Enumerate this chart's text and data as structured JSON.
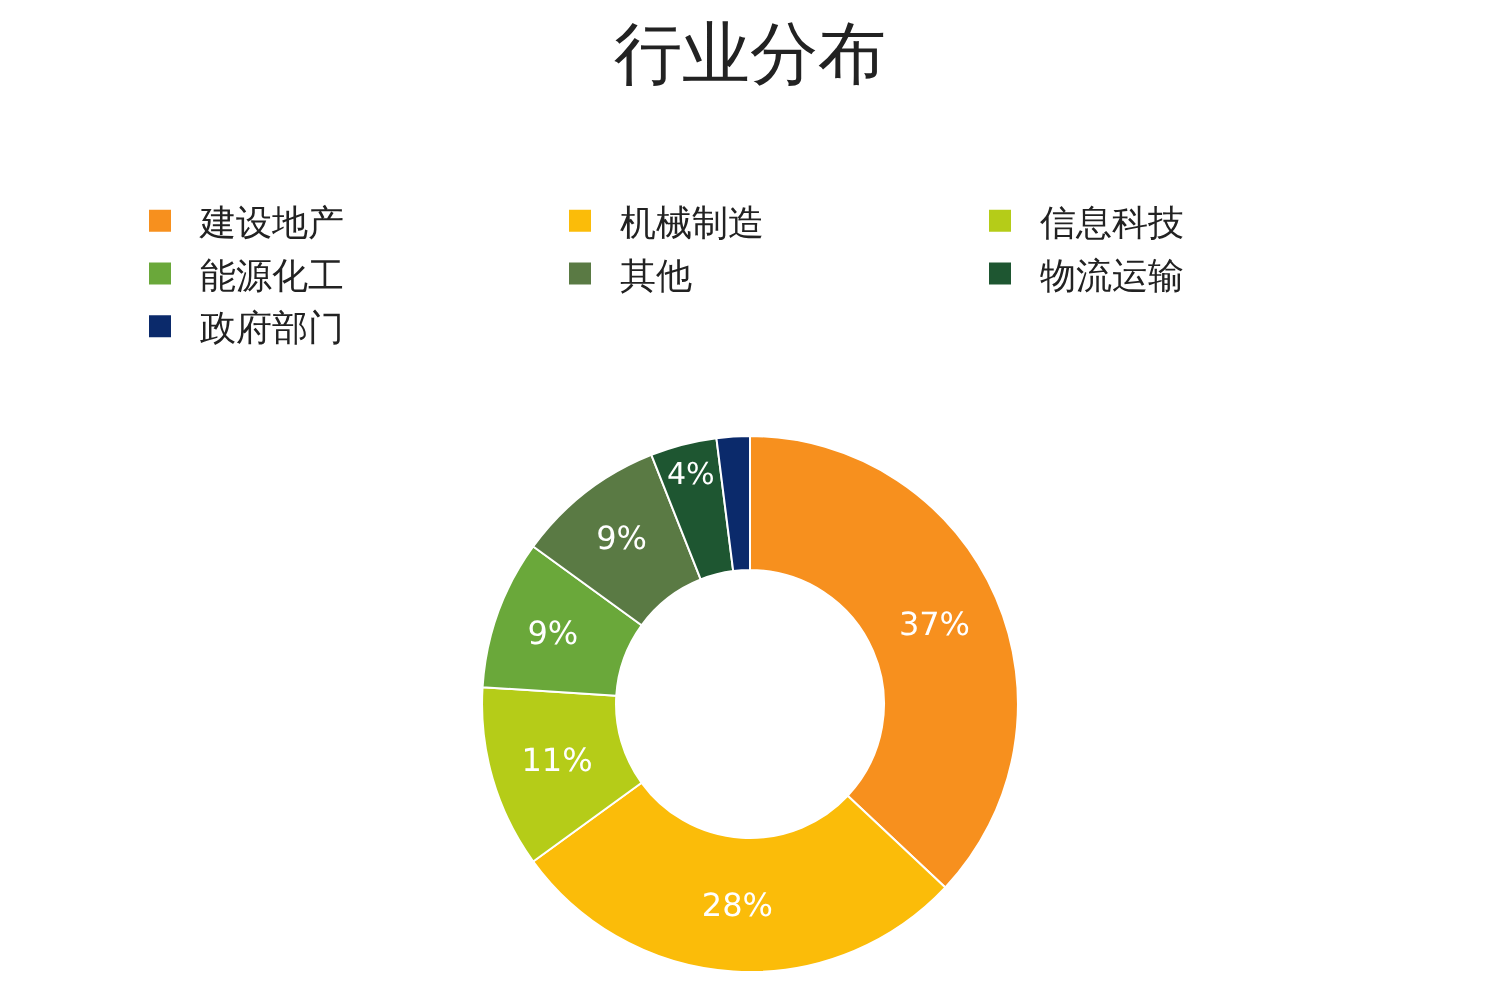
{
  "chart_data": {
    "type": "donut",
    "title": "行业分布",
    "categories": [
      "建设地产",
      "机械制造",
      "信息科技",
      "能源化工",
      "其他",
      "物流运输",
      "政府部门"
    ],
    "values": [
      37,
      28,
      11,
      9,
      9,
      4,
      2
    ],
    "colors": [
      "#f7901e",
      "#fbbc09",
      "#b5cc18",
      "#6aa83a",
      "#5a7a44",
      "#1e5631",
      "#0b2a6b"
    ],
    "value_labels": [
      "37%",
      "28%",
      "11%",
      "9%",
      "9%",
      "4%",
      null
    ],
    "legend": "top"
  }
}
